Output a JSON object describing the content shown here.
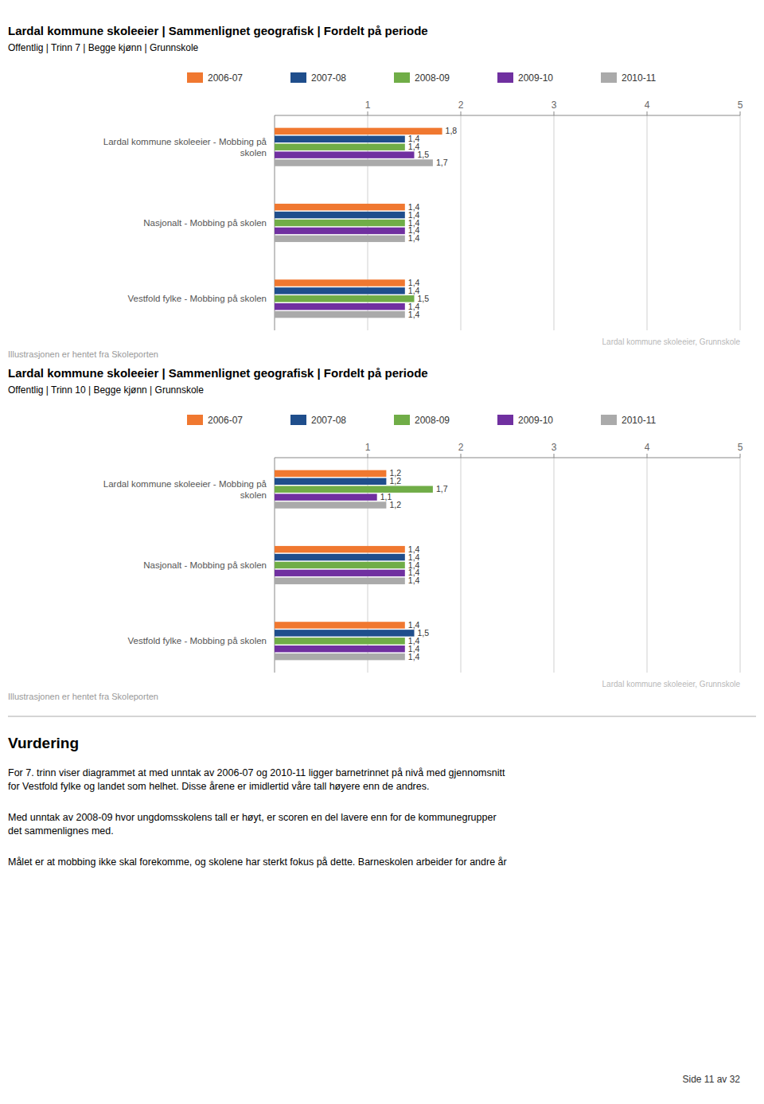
{
  "chart_data": [
    {
      "type": "bar",
      "orientation": "horizontal",
      "title": "Lardal kommune skoleeier | Sammenlignet geografisk | Fordelt på periode",
      "subtitle": "Offentlig | Trinn 7 | Begge kjønn | Grunnskole",
      "categories": [
        "Lardal kommune skoleeier - Mobbing på\nskolen",
        "Nasjonalt - Mobbing på skolen",
        "Vestfold fylke - Mobbing på skolen"
      ],
      "series": [
        {
          "name": "2006-07",
          "color": "#f07830",
          "values": [
            1.8,
            1.4,
            1.4
          ],
          "value_labels": [
            "1,8",
            "1,4",
            "1,4"
          ]
        },
        {
          "name": "2007-08",
          "color": "#1f4e8c",
          "values": [
            1.4,
            1.4,
            1.4
          ],
          "value_labels": [
            "1,4",
            "1,4",
            "1,4"
          ]
        },
        {
          "name": "2008-09",
          "color": "#70ad47",
          "values": [
            1.4,
            1.4,
            1.5
          ],
          "value_labels": [
            "1,4",
            "1,4",
            "1,5"
          ]
        },
        {
          "name": "2009-10",
          "color": "#7030a0",
          "values": [
            1.5,
            1.4,
            1.4
          ],
          "value_labels": [
            "1,5",
            "1,4",
            "1,4"
          ]
        },
        {
          "name": "2010-11",
          "color": "#aaaaaa",
          "values": [
            1.7,
            1.4,
            1.4
          ],
          "value_labels": [
            "1,7",
            "1,4",
            "1,4"
          ]
        }
      ],
      "xlim": [
        0,
        5
      ],
      "xticks": [
        1,
        2,
        3,
        4,
        5
      ],
      "grid": true,
      "data_labels": true,
      "legend": "top",
      "annotations": [
        "Lardal kommune skoleeier, Grunnskole",
        "Illustrasjonen er hentet fra Skoleporten"
      ]
    },
    {
      "type": "bar",
      "orientation": "horizontal",
      "title": "Lardal kommune skoleeier | Sammenlignet geografisk | Fordelt på periode",
      "subtitle": "Offentlig | Trinn 10 | Begge kjønn | Grunnskole",
      "categories": [
        "Lardal kommune skoleeier - Mobbing på\nskolen",
        "Nasjonalt - Mobbing på skolen",
        "Vestfold fylke - Mobbing på skolen"
      ],
      "series": [
        {
          "name": "2006-07",
          "color": "#f07830",
          "values": [
            1.2,
            1.4,
            1.4
          ],
          "value_labels": [
            "1,2",
            "1,4",
            "1,4"
          ]
        },
        {
          "name": "2007-08",
          "color": "#1f4e8c",
          "values": [
            1.2,
            1.4,
            1.5
          ],
          "value_labels": [
            "1,2",
            "1,4",
            "1,5"
          ]
        },
        {
          "name": "2008-09",
          "color": "#70ad47",
          "values": [
            1.7,
            1.4,
            1.4
          ],
          "value_labels": [
            "1,7",
            "1,4",
            "1,4"
          ]
        },
        {
          "name": "2009-10",
          "color": "#7030a0",
          "values": [
            1.1,
            1.4,
            1.4
          ],
          "value_labels": [
            "1,1",
            "1,4",
            "1,4"
          ]
        },
        {
          "name": "2010-11",
          "color": "#aaaaaa",
          "values": [
            1.2,
            1.4,
            1.4
          ],
          "value_labels": [
            "1,2",
            "1,4",
            "1,4"
          ]
        }
      ],
      "xlim": [
        0,
        5
      ],
      "xticks": [
        1,
        2,
        3,
        4,
        5
      ],
      "grid": true,
      "data_labels": true,
      "legend": "top",
      "annotations": [
        "Lardal kommune skoleeier, Grunnskole",
        "Illustrasjonen er hentet fra Skoleporten"
      ]
    }
  ],
  "notes": {
    "title": "Vurdering",
    "paragraphs": [
      "For 7. trinn viser diagrammet at med unntak av 2006-07 og 2010-11 ligger barnetrinnet på nivå med gjennomsnitt\nfor Vestfold fylke og landet som helhet. Disse årene er imidlertid våre tall høyere enn de andres.",
      "Med unntak av 2008-09 hvor ungdomsskolens tall er høyt, er scoren en del lavere enn for de kommunegrupper\ndet sammenlignes med.",
      "Målet er at mobbing ikke skal forekomme, og skolene har sterkt fokus på dette. Barneskolen arbeider for andre år"
    ],
    "page_number": "Side 11 av 32"
  }
}
